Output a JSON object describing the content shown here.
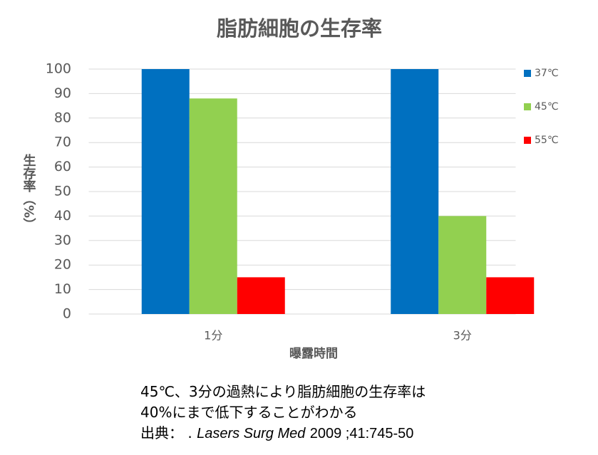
{
  "chart_data": {
    "type": "bar",
    "title": "脂肪細胞の生存率",
    "x_label": "曝露時間",
    "y_label": "生存率（%）",
    "categories": [
      "1分",
      "3分"
    ],
    "series": [
      {
        "name": "37℃",
        "color": "#0070c0",
        "values": [
          100,
          100
        ]
      },
      {
        "name": "45℃",
        "color": "#92d050",
        "values": [
          88,
          40
        ]
      },
      {
        "name": "55℃",
        "color": "#ff0000",
        "values": [
          15,
          15
        ]
      }
    ],
    "ylim": [
      0,
      100
    ],
    "yticks": [
      0,
      10,
      20,
      30,
      40,
      50,
      60,
      70,
      80,
      90,
      100
    ],
    "grid": true,
    "legend": "right"
  },
  "caption": {
    "lines": [
      "45℃、3分の過熱により脂肪細胞の生存率は",
      "40%にまで低下することがわかる"
    ],
    "source": {
      "prefix": "出典： .",
      "journal": "Lasers Surg Med",
      "rest": "2009 ;41:745-50"
    }
  }
}
